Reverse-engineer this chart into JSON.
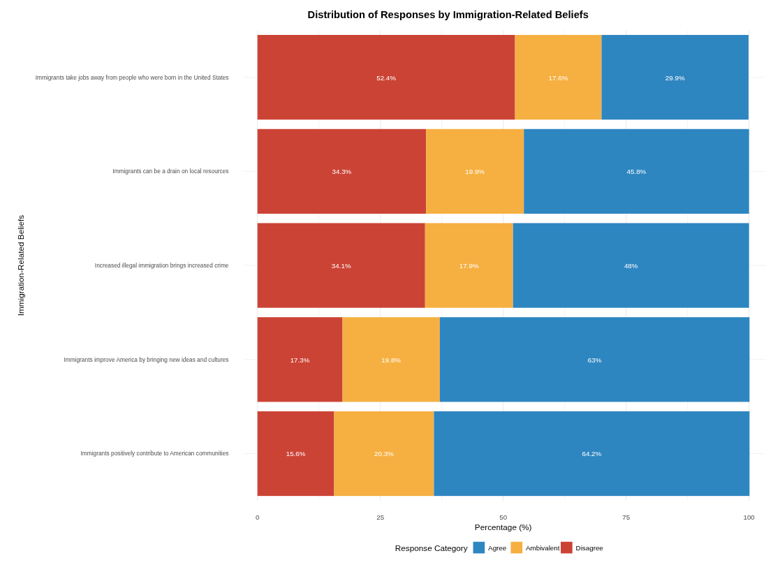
{
  "chart_data": {
    "type": "bar",
    "orientation": "horizontal",
    "stacked": true,
    "title": "Distribution of Responses by Immigration-Related Beliefs",
    "xlabel": "Percentage (%)",
    "ylabel": "Immigration-Related Beliefs",
    "legend_title": "Response Category",
    "legend": "bottom",
    "grid": "x",
    "categories": [
      "Immigrants take jobs away from people who were born in the United States",
      "Immigrants can be a drain on local resources",
      "Increased illegal immigration brings increased crime",
      "Immigrants improve America by bringing new ideas and cultures",
      "Immigrants positively contribute to American communities"
    ],
    "xlim": [
      0,
      100
    ],
    "xticks": [
      0,
      {
        "value": 12.5,
        "label": null
      },
      25,
      {
        "value": 37.5,
        "label": null
      },
      50,
      {
        "value": 62.5,
        "label": null
      },
      75,
      {
        "value": 87.5,
        "label": null
      },
      100
    ],
    "series": [
      {
        "name": "Disagree",
        "color": "#cb4335",
        "values": [
          52.4,
          34.3,
          34.1,
          17.3,
          15.6
        ],
        "value_labels": [
          "52.4%",
          "34.3%",
          "34.1%",
          "17.3%",
          "15.6%"
        ]
      },
      {
        "name": "Ambivalent",
        "color": "#f5b041",
        "values": [
          17.6,
          19.9,
          17.9,
          19.8,
          20.3
        ],
        "value_labels": [
          "17.6%",
          "19.9%",
          "17.9%",
          "19.8%",
          "20.3%"
        ]
      },
      {
        "name": "Agree",
        "color": "#2e86c1",
        "values": [
          29.9,
          45.8,
          48,
          63,
          64.2
        ],
        "value_labels": [
          "29.9%",
          "45.8%",
          "48%",
          "63%",
          "64.2%"
        ]
      }
    ]
  }
}
